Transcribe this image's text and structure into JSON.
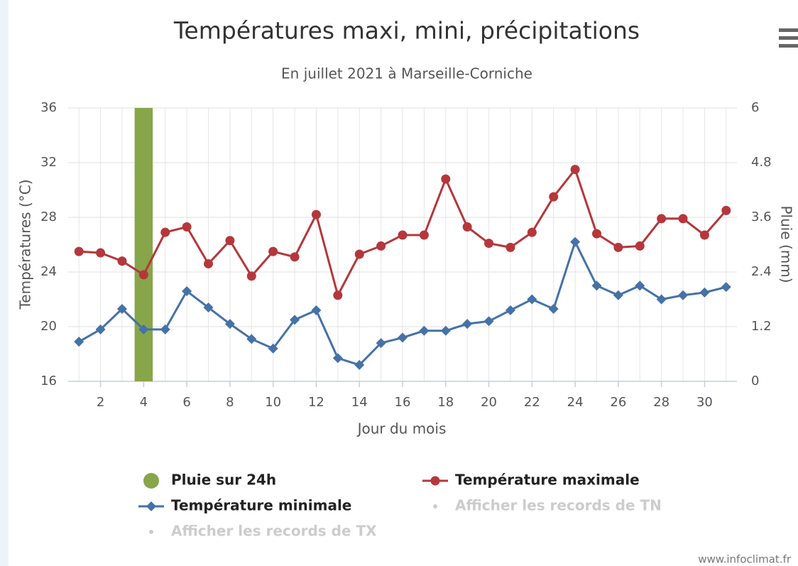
{
  "chart_data": {
    "type": "line",
    "title": "Températures maxi, mini, précipitations",
    "subtitle": "En juillet 2021 à Marseille-Corniche",
    "x_label": "Jour du mois",
    "y_label": "Températures (°C)",
    "y2_label": "Pluie (mm)",
    "x": [
      1,
      2,
      3,
      4,
      5,
      6,
      7,
      8,
      9,
      10,
      11,
      12,
      13,
      14,
      15,
      16,
      17,
      18,
      19,
      20,
      21,
      22,
      23,
      24,
      25,
      26,
      27,
      28,
      29,
      30,
      31
    ],
    "xlim": [
      0.5,
      31.5
    ],
    "xticks": [
      2,
      4,
      6,
      8,
      10,
      12,
      14,
      16,
      18,
      20,
      22,
      24,
      26,
      28,
      30
    ],
    "ylim": [
      16,
      36
    ],
    "yticks": [
      16,
      20,
      24,
      28,
      32,
      36
    ],
    "y2lim": [
      0,
      6
    ],
    "y2ticks": [
      0,
      1.2,
      2.4,
      3.6,
      4.8,
      6
    ],
    "grid": true,
    "series": [
      {
        "name": "Pluie sur 24h",
        "type": "column",
        "axis": "y2",
        "color": "#87a64a",
        "values": [
          null,
          null,
          null,
          6,
          null,
          null,
          null,
          null,
          null,
          null,
          null,
          null,
          null,
          null,
          null,
          null,
          null,
          null,
          null,
          null,
          null,
          null,
          null,
          null,
          null,
          null,
          null,
          null,
          null,
          null,
          null
        ]
      },
      {
        "name": "Température maximale",
        "type": "line",
        "marker": "circle",
        "color": "#b5373b",
        "values": [
          25.5,
          25.4,
          24.8,
          23.8,
          26.9,
          27.3,
          24.6,
          26.3,
          23.7,
          25.5,
          25.1,
          28.2,
          22.3,
          25.3,
          25.9,
          26.7,
          26.7,
          30.8,
          27.3,
          26.1,
          25.8,
          26.9,
          29.5,
          31.5,
          26.8,
          25.8,
          25.9,
          27.9,
          27.9,
          26.7,
          28.5
        ]
      },
      {
        "name": "Température minimale",
        "type": "line",
        "marker": "diamond",
        "color": "#4572a7",
        "values": [
          18.9,
          19.8,
          21.3,
          19.8,
          19.8,
          22.6,
          21.4,
          20.2,
          19.1,
          18.4,
          20.5,
          21.2,
          17.7,
          17.2,
          18.8,
          19.2,
          19.7,
          19.7,
          20.2,
          20.4,
          21.2,
          22.0,
          21.3,
          26.2,
          23.0,
          22.3,
          23.0,
          22.0,
          22.3,
          22.5,
          22.9
        ]
      }
    ],
    "legend_disabled": [
      "Afficher les records de TN",
      "Afficher les records de TX"
    ],
    "credit": "www.infoclimat.fr"
  }
}
